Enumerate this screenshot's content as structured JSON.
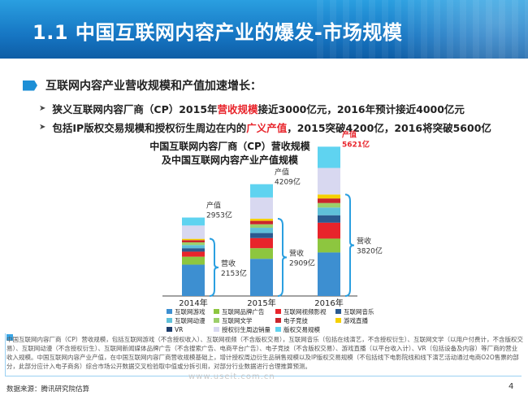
{
  "header": {
    "title": "1.1 中国互联网内容产业的爆发-市场规模"
  },
  "section": {
    "title": "互联网内容产业营收规模和产值加速增长："
  },
  "bullets": [
    {
      "pre": "狭义互联网内容厂商（CP）2015年",
      "highlight": "营收规模",
      "post": "接近3000亿元，2016年预计接近4000亿元"
    },
    {
      "pre": "包括IP版权交易规模和授权衍生周边在内的",
      "highlight": "广义产值",
      "post": "，2015突破4200亿，2016将突破5600亿"
    }
  ],
  "chart_data": {
    "type": "bar",
    "title_line1": "中国互联网内容厂商（CP）营收规模",
    "title_line2": "及中国互联网内容产业产值规模",
    "categories": [
      "2014年",
      "2015年",
      "2016年"
    ],
    "revenue": [
      2153,
      2909,
      3820
    ],
    "output": [
      2953,
      4209,
      5621
    ],
    "revenue_label_word": "营收",
    "output_label_word": "产值",
    "unit": "亿",
    "series": [
      {
        "name": "互联网游戏",
        "color": "#3d8fd1",
        "values": [
          1180,
          1400,
          1640
        ]
      },
      {
        "name": "互联网品牌广告",
        "color": "#8dc63f",
        "values": [
          300,
          400,
          520
        ]
      },
      {
        "name": "互联网视频影视",
        "color": "#e8242b",
        "values": [
          190,
          380,
          600
        ]
      },
      {
        "name": "互联网音乐",
        "color": "#2b5a8f",
        "values": [
          130,
          190,
          280
        ]
      },
      {
        "name": "互联网动漫",
        "color": "#5fc0d9",
        "values": [
          120,
          200,
          290
        ]
      },
      {
        "name": "互联网文学",
        "color": "#9ccf6a",
        "values": [
          100,
          130,
          170
        ]
      },
      {
        "name": "电子竞技",
        "color": "#c9252c",
        "values": [
          83,
          129,
          170
        ]
      },
      {
        "name": "游戏直播",
        "color": "#f5d000",
        "values": [
          50,
          80,
          150
        ]
      },
      {
        "name": "VR",
        "color": "#1e3d6b",
        "values": [
          0,
          0,
          0
        ]
      },
      {
        "name": "授权衍生周边销量",
        "color": "#d8d8f0",
        "values": [
          500,
          800,
          1000
        ]
      },
      {
        "name": "版权交易规模",
        "color": "#5fd3f0",
        "values": [
          300,
          500,
          801
        ]
      }
    ],
    "legend_order": [
      0,
      1,
      2,
      3,
      4,
      5,
      6,
      7,
      8,
      9,
      10
    ],
    "ylim": [
      0,
      6000
    ]
  },
  "footnote": "中国互联网内容厂商（CP）营收规模，包括互联网游戏（不含授权收入）、互联网视频（不含版权交易），互联网音乐（包括在线演艺，不含授权衍生）、互联网文学（以用户付费计，不含版权交易）、互联网动漫（不含授权衍生）、互联网新闻媒体品牌广告（不含搜索广告、电商平台广告）、电子竞技（不含版权交易）、游戏直播（以平台收入计）、VR（包括设备及内容）等厂商的营业收入规模。中国互联网内容产业产值，在中国互联网内容厂商营收规模基础上，增计授权周边衍生品销售规模以及IP版权交易规模（不包括线下电影院线和线下演艺活动通过电商O2O售票的部分，此部分应计入电子商务）综合市场公开数据交叉检验取中值或分拆引用，对部分行业数据进行合理推算预测。",
  "source": "数据来源：腾讯研究院估算",
  "watermark": "www.useit.com.cn",
  "page_number": "4"
}
